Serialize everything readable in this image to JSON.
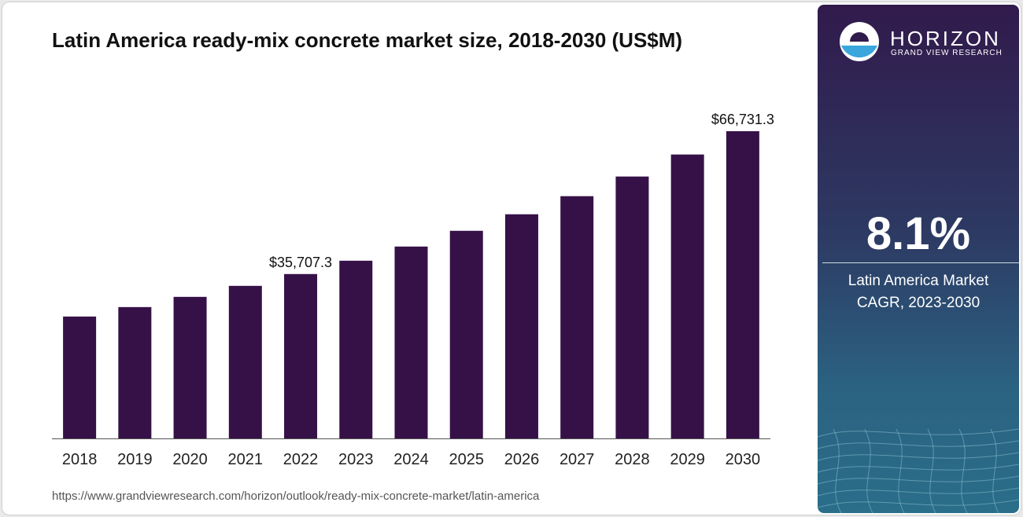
{
  "chart_data": {
    "type": "bar",
    "title": "Latin America ready-mix concrete market size, 2018-2030 (US$M)",
    "categories": [
      "2018",
      "2019",
      "2020",
      "2021",
      "2022",
      "2023",
      "2024",
      "2025",
      "2026",
      "2027",
      "2028",
      "2029",
      "2030"
    ],
    "values": [
      26480,
      28530,
      30750,
      33140,
      35707.3,
      38600,
      41680,
      45100,
      48690,
      52620,
      56890,
      61670,
      66731.3
    ],
    "value_labels": [
      null,
      null,
      null,
      null,
      "$35,707.3",
      null,
      null,
      null,
      null,
      null,
      null,
      null,
      "$66,731.3"
    ],
    "color": "#361148"
  },
  "source": "https://www.grandviewresearch.com/horizon/outlook/ready-mix-concrete-market/latin-america",
  "panel": {
    "brand": "HORIZON",
    "brand_sub": "GRAND VIEW RESEARCH",
    "cagr": "8.1%",
    "cagr_label": "Latin America Market CAGR, 2023-2030"
  }
}
